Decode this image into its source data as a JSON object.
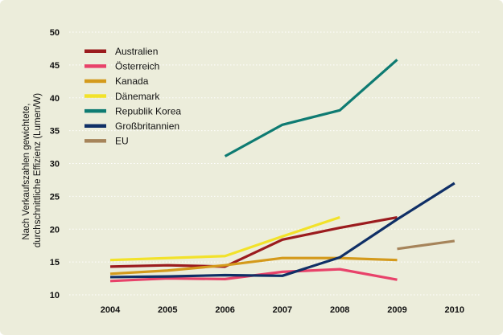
{
  "chart_data": {
    "type": "line",
    "ylabel": "Nach Verkaufszahlen gewichtete, durchschnittliche Effizienz (Lumen/W)",
    "ylabel_lines": [
      "Nach Verkaufszahlen gewichtete,",
      "durchschnittliche Effizienz (Lumen/W)"
    ],
    "ylim": [
      10,
      50
    ],
    "yticks": [
      10,
      15,
      20,
      25,
      30,
      35,
      40,
      45,
      50
    ],
    "x": [
      2004,
      2005,
      2006,
      2007,
      2008,
      2009,
      2010
    ],
    "grid": true,
    "legend_position": "top-left",
    "background": "#eceddb",
    "series": [
      {
        "name": "Australien",
        "color": "#9b1b1e",
        "values": [
          14.3,
          14.5,
          14.3,
          18.4,
          20.2,
          21.8,
          null
        ]
      },
      {
        "name": "Österreich",
        "color": "#e8426a",
        "values": [
          12.1,
          12.5,
          12.4,
          13.5,
          13.9,
          12.3,
          null
        ]
      },
      {
        "name": "Kanada",
        "color": "#d49a1c",
        "values": [
          13.2,
          13.7,
          14.5,
          15.6,
          15.6,
          15.3,
          null
        ]
      },
      {
        "name": "Dänemark",
        "color": "#f2e22a",
        "values": [
          15.3,
          15.6,
          15.9,
          18.9,
          21.8,
          null,
          null
        ]
      },
      {
        "name": "Republik Korea",
        "color": "#0e7b72",
        "values": [
          null,
          null,
          31.1,
          35.9,
          38.1,
          45.8,
          null
        ]
      },
      {
        "name": "Großbritannien",
        "color": "#0f2f66",
        "values": [
          12.7,
          12.8,
          13.0,
          12.9,
          15.7,
          21.5,
          27.0
        ]
      },
      {
        "name": "EU",
        "color": "#a6845a",
        "values": [
          null,
          null,
          null,
          null,
          null,
          17.0,
          18.2
        ]
      }
    ]
  }
}
